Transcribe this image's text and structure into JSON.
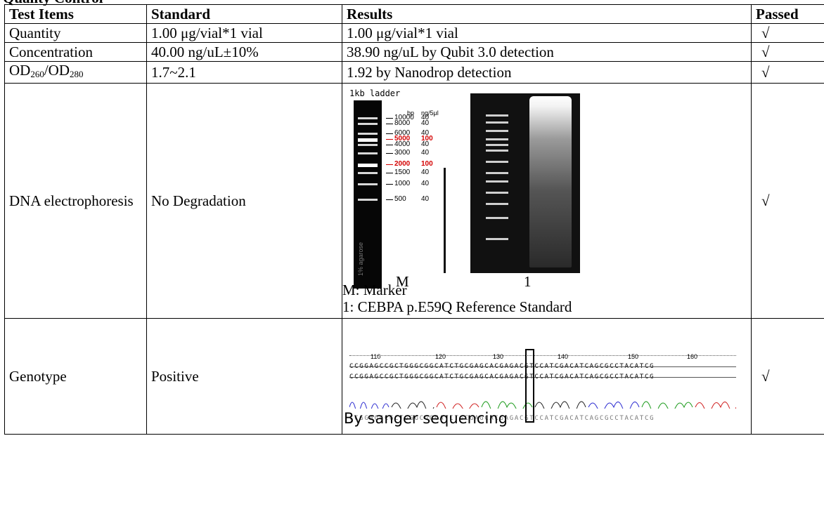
{
  "page": {
    "section_heading_fragment": "Quality Control"
  },
  "table": {
    "headers": [
      "Test Items",
      "Standard",
      "Results",
      "Passed"
    ],
    "rows": [
      {
        "item": "Quantity",
        "standard": "1.00 μg/vial*1 vial",
        "result": "1.00 μg/vial*1 vial",
        "passed": "√"
      },
      {
        "item": "Concentration",
        "standard": "40.00 ng/uL±10%",
        "result": "38.90 ng/uL by Qubit 3.0 detection",
        "passed": "√"
      },
      {
        "item_parts": [
          "OD",
          "260",
          "/OD",
          "280"
        ],
        "standard": "1.7~2.1",
        "result": "1.92 by Nanodrop detection",
        "passed": "√"
      },
      {
        "item": "DNA electrophoresis",
        "standard": "No Degradation",
        "passed": "√"
      },
      {
        "item": "Genotype",
        "standard": "Positive",
        "passed": "√"
      }
    ]
  },
  "electrophoresis": {
    "ladder_title": "1kb ladder",
    "gel_note": "1% agarose",
    "scale_headers": [
      "bp",
      "ng/5μl"
    ],
    "ladder": [
      {
        "bp": "10000",
        "ng": "40",
        "highlight": false
      },
      {
        "bp": "8000",
        "ng": "40",
        "highlight": false
      },
      {
        "bp": "6000",
        "ng": "40",
        "highlight": false
      },
      {
        "bp": "5000",
        "ng": "100",
        "highlight": true
      },
      {
        "bp": "4000",
        "ng": "40",
        "highlight": false
      },
      {
        "bp": "3000",
        "ng": "40",
        "highlight": false
      },
      {
        "bp": "2000",
        "ng": "100",
        "highlight": true
      },
      {
        "bp": "1500",
        "ng": "40",
        "highlight": false
      },
      {
        "bp": "1000",
        "ng": "40",
        "highlight": false
      },
      {
        "bp": "500",
        "ng": "40",
        "highlight": false
      }
    ],
    "lane_labels": [
      "M",
      "1"
    ],
    "legend": [
      "M: Marker",
      "1: CEBPA p.E59Q Reference Standard"
    ],
    "colors": {
      "highlight": "#d40000",
      "gel": "#111111"
    }
  },
  "sequencing": {
    "positions": [
      "110",
      "120",
      "130",
      "140",
      "150",
      "160"
    ],
    "reference_seq": "CCGGAGCCGCTGGGCGGCATCTGCGAGCACGAGACGTCCATCGACATCAGCGCCTACATCG",
    "sample_seq": "CCGGAGCCGCTGGGCGGCATCTGCGAGCACGAGACGTCCATCGACATCAGCGCCTACATCG",
    "called_seq": "CCGGAGCCGCTGGGCGGCATCTGCGAGCACGAGACGTCCATCGACATCAGCGCCTACATCG",
    "method": "By sanger sequencing",
    "trace_colors": {
      "A": "#1a9a1a",
      "C": "#2a2ad0",
      "G": "#222222",
      "T": "#d02020"
    }
  }
}
